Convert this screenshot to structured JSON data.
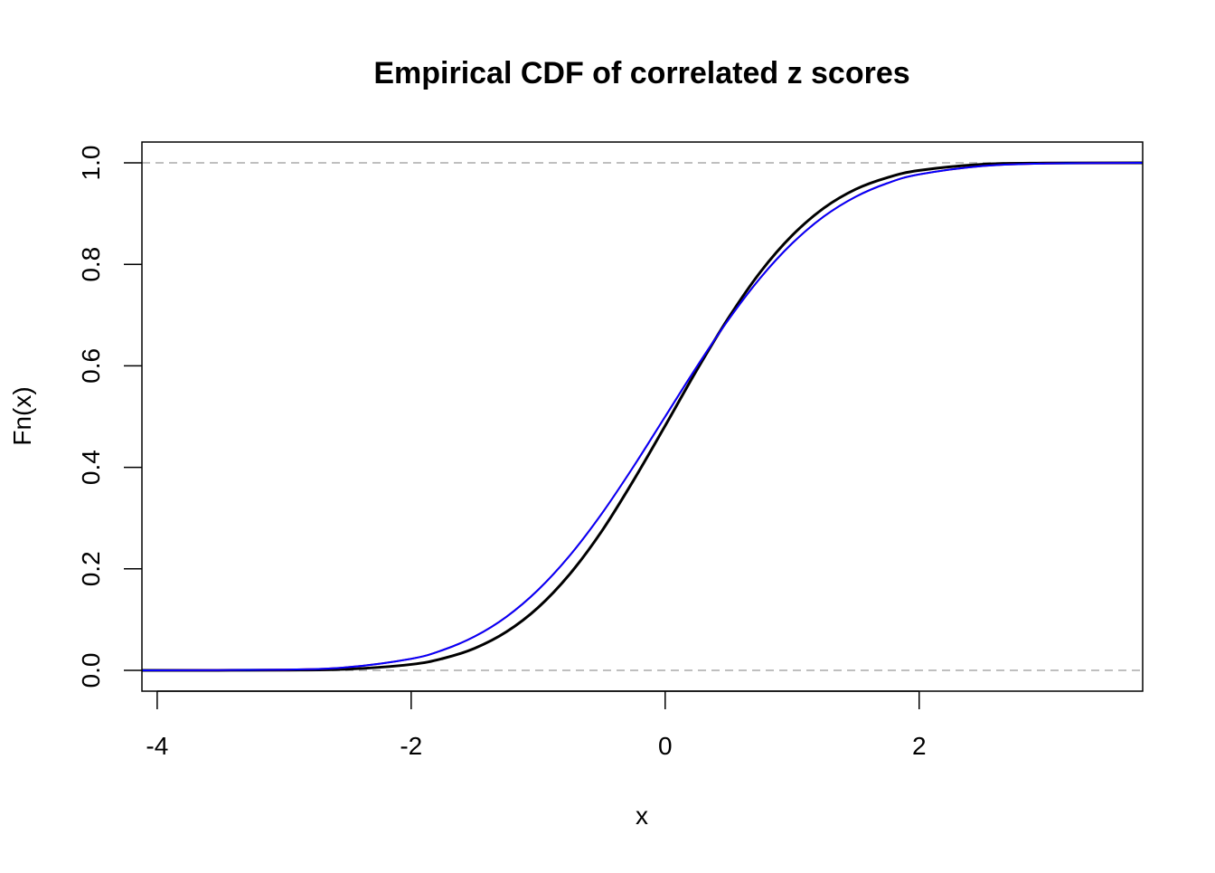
{
  "chart_data": {
    "type": "line",
    "title": "Empirical CDF of correlated z scores",
    "xlabel": "x",
    "ylabel": "Fn(x)",
    "xlim": [
      -4.12,
      3.76
    ],
    "ylim": [
      -0.041,
      1.041
    ],
    "xticks": [
      -4,
      -2,
      0,
      2
    ],
    "xtick_labels": [
      "-4",
      "-2",
      "0",
      "2"
    ],
    "yticks": [
      0,
      0.2,
      0.4,
      0.6,
      0.8,
      1
    ],
    "ytick_labels": [
      "0.0",
      "0.2",
      "0.4",
      "0.6",
      "0.8",
      "1.0"
    ],
    "hlines": [
      0,
      1
    ],
    "hline_color": "#aaaaaa",
    "grid": false,
    "x": [
      -4.12,
      -3,
      -2.5,
      -2,
      -1.75,
      -1.5,
      -1.25,
      -1,
      -0.75,
      -0.5,
      -0.25,
      0,
      0.25,
      0.5,
      0.75,
      1,
      1.25,
      1.5,
      1.75,
      2,
      2.5,
      3,
      3.76
    ],
    "series": [
      {
        "color": "#000000",
        "values": [
          0,
          0.0004,
          0.0024,
          0.0117,
          0.0234,
          0.0435,
          0.0759,
          0.1239,
          0.19,
          0.274,
          0.374,
          0.482,
          0.592,
          0.695,
          0.785,
          0.857,
          0.911,
          0.948,
          0.971,
          0.985,
          0.997,
          0.9995,
          1
        ]
      },
      {
        "color": "#ff0000",
        "values": [
          2e-05,
          0.0013,
          0.0062,
          0.0228,
          0.0401,
          0.0668,
          0.1056,
          0.1587,
          0.2266,
          0.3085,
          0.4013,
          0.5,
          0.5987,
          0.6915,
          0.7734,
          0.8413,
          0.8944,
          0.9332,
          0.9599,
          0.9772,
          0.9938,
          0.9987,
          0.9999
        ]
      },
      {
        "color": "#0000ff",
        "values": [
          2e-05,
          0.0013,
          0.0062,
          0.0228,
          0.0401,
          0.0668,
          0.1056,
          0.1587,
          0.2266,
          0.3085,
          0.4013,
          0.5,
          0.5987,
          0.6915,
          0.7734,
          0.8413,
          0.8944,
          0.9332,
          0.9599,
          0.9772,
          0.9938,
          0.9987,
          0.9999
        ]
      }
    ]
  }
}
